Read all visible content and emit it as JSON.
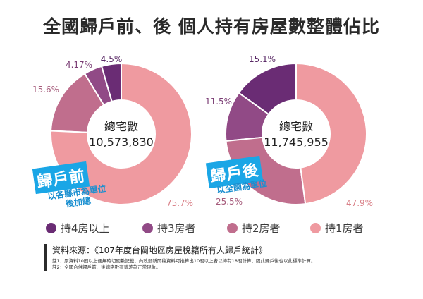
{
  "title": "全國歸戶前、後 個人持有房屋數整體佔比",
  "colors": {
    "own4plus": "#6a2c74",
    "own3": "#914a86",
    "own2": "#c06e8d",
    "own1": "#ef9aa0",
    "tag": "#1aa6e6"
  },
  "chart_data": [
    {
      "type": "pie",
      "center_label": "總宅數",
      "center_value": "10,573,830",
      "tag_label": "歸戶前",
      "tag_sub_lines": [
        "以各縣市為單位",
        "後加總"
      ],
      "slices": [
        {
          "name": "持4房以上",
          "value": 4.5,
          "label": "4.5%"
        },
        {
          "name": "持3房者",
          "value": 4.17,
          "label": "4.17%"
        },
        {
          "name": "持2房者",
          "value": 15.6,
          "label": "15.6%"
        },
        {
          "name": "持1房者",
          "value": 75.7,
          "label": "75.7%"
        }
      ]
    },
    {
      "type": "pie",
      "center_label": "總宅數",
      "center_value": "11,745,955",
      "tag_label": "歸戶後",
      "tag_sub_lines": [
        "以全國為單位"
      ],
      "slices": [
        {
          "name": "持4房以上",
          "value": 15.1,
          "label": "15.1%"
        },
        {
          "name": "持3房者",
          "value": 11.5,
          "label": "11.5%"
        },
        {
          "name": "持2房者",
          "value": 25.5,
          "label": "25.5%"
        },
        {
          "name": "持1房者",
          "value": 47.9,
          "label": "47.9%"
        }
      ]
    }
  ],
  "legend": [
    {
      "label": "持4房以上",
      "color": "#6a2c74"
    },
    {
      "label": "持3房者",
      "color": "#914a86"
    },
    {
      "label": "持2房者",
      "color": "#c06e8d"
    },
    {
      "label": "持1房者",
      "color": "#ef9aa0"
    }
  ],
  "source": {
    "title": "資料來源：《107年度台閩地區房屋稅籍所有人歸戶統計》",
    "notes": [
      "註1：原資料10間以上便無確切間數記載，內政部新聞稿資料可推算出10間以上者以持有18間計算，因此歸戶後也以此標準計算。",
      "註2：全國合併歸戶前、後總宅數有落差為正常現象。"
    ]
  }
}
